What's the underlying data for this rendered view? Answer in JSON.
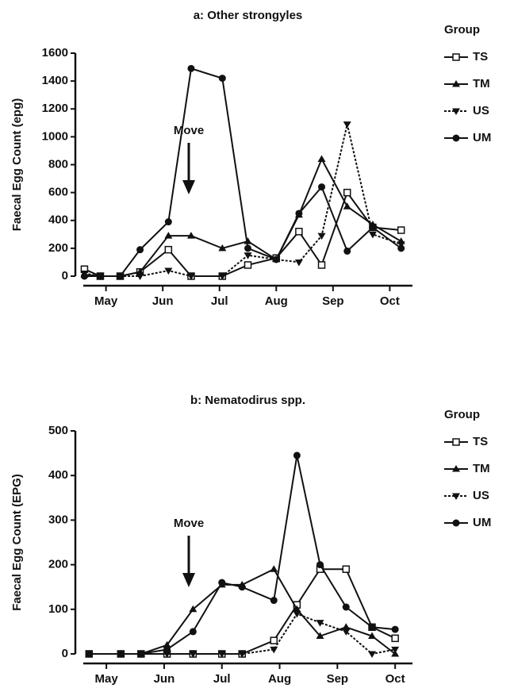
{
  "chart_data": [
    {
      "type": "line",
      "title": "a: Other strongyles",
      "ylabel": "Faecal Egg Count (epg)",
      "legend_title": "Group",
      "annotation": "Move",
      "x": [
        4.62,
        4.9,
        5.25,
        5.6,
        6.1,
        6.5,
        7.05,
        7.5,
        8.0,
        8.4,
        8.8,
        9.25,
        9.7,
        10.2
      ],
      "xlim": [
        4.6,
        10.4
      ],
      "xticks": [
        {
          "value": 5,
          "label": "May"
        },
        {
          "value": 6,
          "label": "Jun"
        },
        {
          "value": 7,
          "label": "Jul"
        },
        {
          "value": 8,
          "label": "Aug"
        },
        {
          "value": 9,
          "label": "Sep"
        },
        {
          "value": 10,
          "label": "Oct"
        }
      ],
      "ylim": [
        0,
        1600
      ],
      "yticks": [
        0,
        200,
        400,
        600,
        800,
        1000,
        1200,
        1400,
        1600
      ],
      "series": [
        {
          "name": "TS",
          "color": "#111111",
          "marker": "square",
          "dash": false,
          "values": [
            50,
            0,
            0,
            30,
            190,
            0,
            0,
            80,
            130,
            320,
            80,
            600,
            350,
            330
          ]
        },
        {
          "name": "TM",
          "color": "#111111",
          "marker": "triangle-up",
          "dash": false,
          "values": [
            10,
            0,
            0,
            30,
            290,
            290,
            200,
            250,
            120,
            440,
            840,
            500,
            370,
            250
          ]
        },
        {
          "name": "US",
          "color": "#111111",
          "marker": "triangle-down",
          "dash": true,
          "values": [
            20,
            0,
            0,
            0,
            40,
            0,
            0,
            150,
            120,
            100,
            290,
            1090,
            300,
            230
          ]
        },
        {
          "name": "UM",
          "color": "#111111",
          "marker": "circle",
          "dash": false,
          "values": [
            0,
            0,
            0,
            190,
            390,
            1490,
            1420,
            200,
            120,
            450,
            640,
            180,
            350,
            200
          ]
        }
      ]
    },
    {
      "type": "line",
      "title": "b: Nematodirus spp.",
      "ylabel": "Faecal Egg Count (EPG)",
      "legend_title": "Group",
      "annotation": "Move",
      "x": [
        4.7,
        5.25,
        5.6,
        6.05,
        6.5,
        7.0,
        7.35,
        7.9,
        8.3,
        8.7,
        9.15,
        9.6,
        10.0
      ],
      "xlim": [
        4.6,
        10.3
      ],
      "xticks": [
        {
          "value": 5,
          "label": "May"
        },
        {
          "value": 6,
          "label": "Jun"
        },
        {
          "value": 7,
          "label": "Jul"
        },
        {
          "value": 8,
          "label": "Aug"
        },
        {
          "value": 9,
          "label": "Sep"
        },
        {
          "value": 10,
          "label": "Oct"
        }
      ],
      "ylim": [
        0,
        500
      ],
      "yticks": [
        0,
        100,
        200,
        300,
        400,
        500
      ],
      "series": [
        {
          "name": "TS",
          "color": "#111111",
          "marker": "square",
          "dash": false,
          "values": [
            0,
            0,
            0,
            0,
            0,
            0,
            0,
            30,
            110,
            190,
            190,
            60,
            35
          ]
        },
        {
          "name": "TM",
          "color": "#111111",
          "marker": "triangle-up",
          "dash": false,
          "values": [
            0,
            0,
            0,
            20,
            100,
            155,
            155,
            190,
            100,
            40,
            60,
            40,
            0
          ]
        },
        {
          "name": "US",
          "color": "#111111",
          "marker": "triangle-down",
          "dash": true,
          "values": [
            0,
            0,
            0,
            0,
            0,
            0,
            0,
            10,
            90,
            70,
            50,
            0,
            10
          ]
        },
        {
          "name": "UM",
          "color": "#111111",
          "marker": "circle",
          "dash": false,
          "values": [
            0,
            0,
            0,
            10,
            50,
            160,
            150,
            120,
            445,
            200,
            105,
            60,
            55
          ]
        }
      ]
    }
  ]
}
